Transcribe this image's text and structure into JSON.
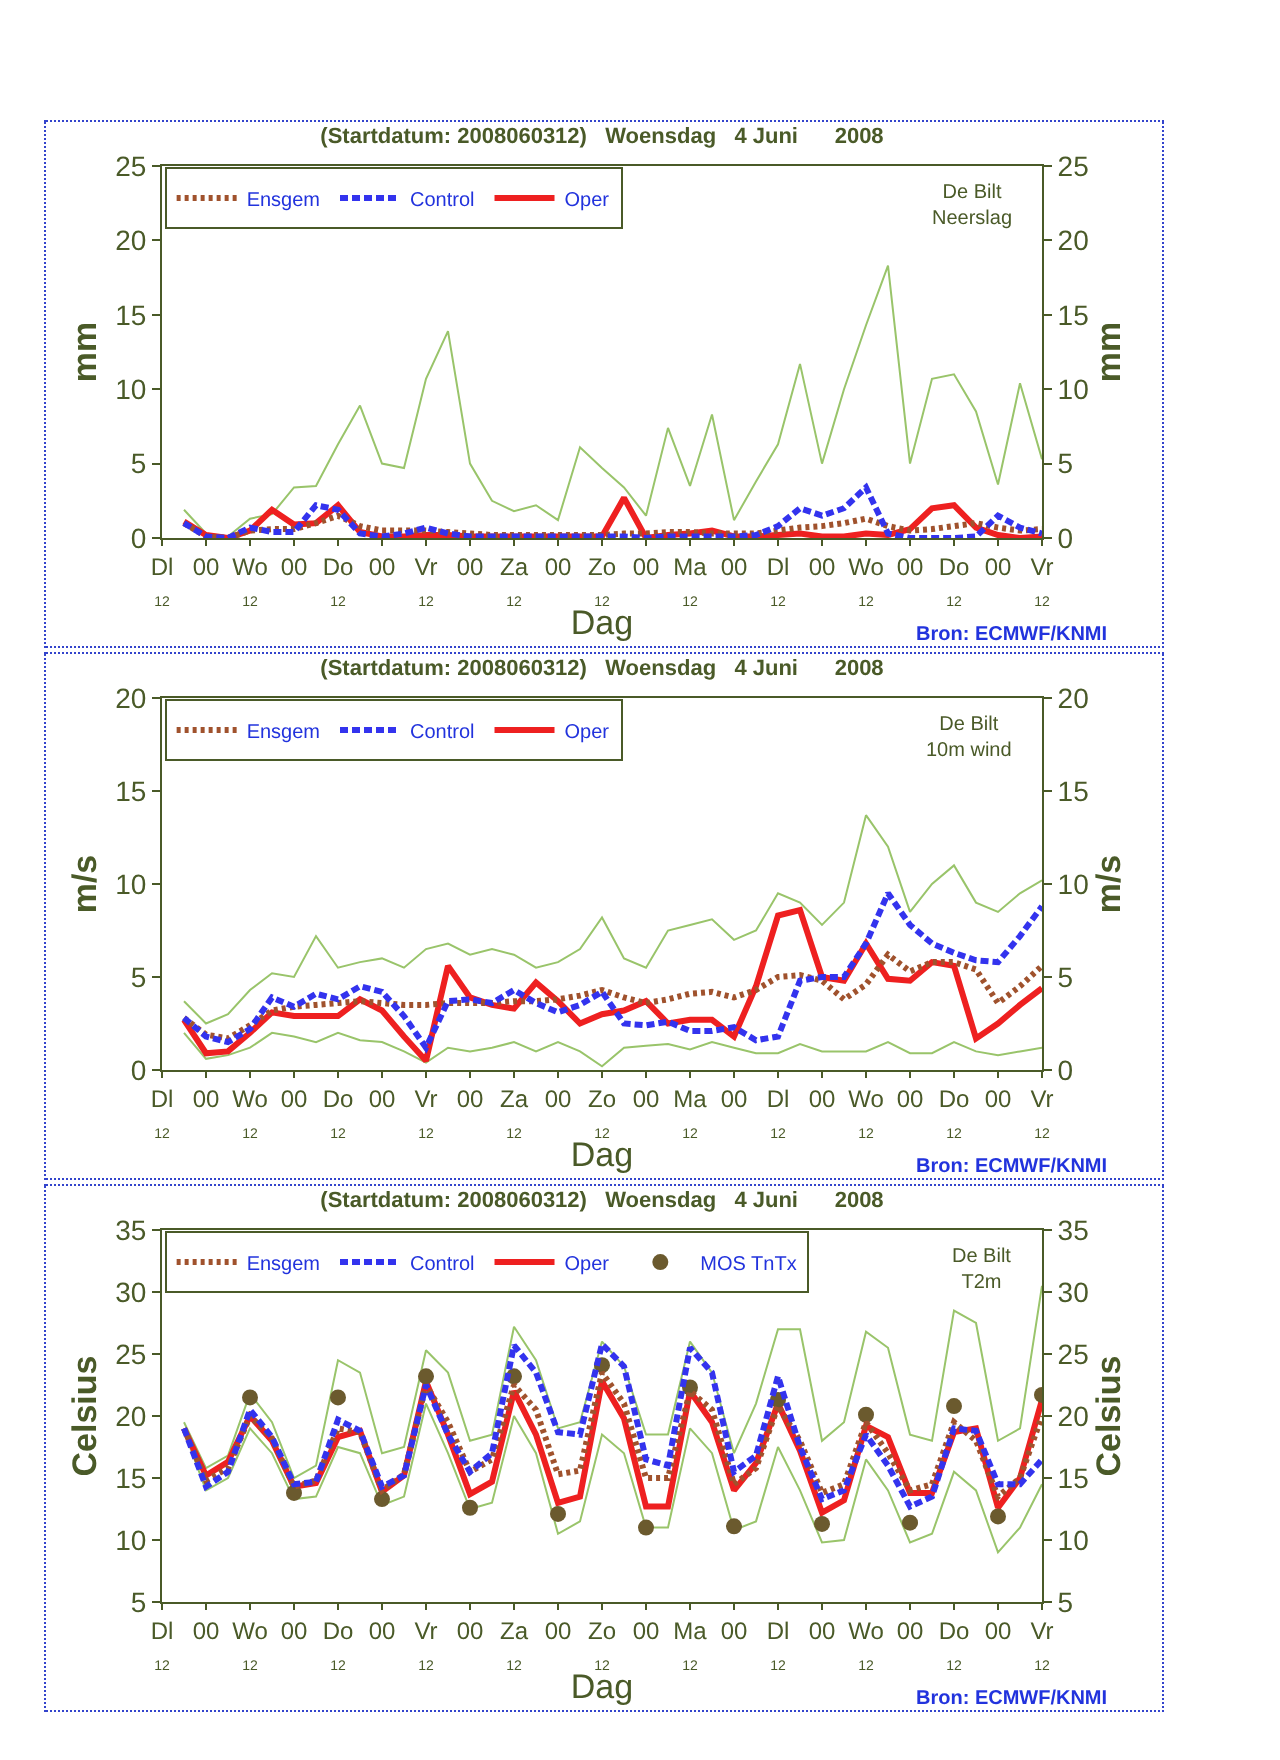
{
  "chart_data": [
    {
      "type": "line",
      "title": "(Startdatum: 2008060312)   Woensdag   4 Juni      2008",
      "xlabel": "Dag",
      "ylabel": "mm",
      "y2label": "mm",
      "annotations": [
        "De Bilt\nNeerslag",
        "Bron: ECMWF/KNMI"
      ],
      "categories": [
        "Dl\n12",
        null,
        "00",
        null,
        "Wo\n12",
        null,
        "00",
        null,
        "Do\n12",
        null,
        "00",
        null,
        "Vr\n12",
        null,
        "00",
        null,
        "Za\n12",
        null,
        "00",
        null,
        "Zo\n12",
        null,
        "00",
        null,
        "Ma\n12",
        null,
        "00",
        null,
        "Dl\n12",
        null,
        "00",
        null,
        "Wo\n12",
        null,
        "00",
        null,
        "Do\n12",
        null,
        "00",
        null,
        "Vr\n12"
      ],
      "ylim": [
        0,
        25
      ],
      "yticks": [
        0,
        5,
        10,
        15,
        20,
        25
      ],
      "y2lim": [
        0,
        25
      ],
      "y2ticks": [
        0,
        5,
        10,
        15,
        20,
        25
      ],
      "legend": "top left",
      "series": [
        {
          "color": "#99c46a",
          "line_style": "solid",
          "values": [
            null,
            1.9,
            0.3,
            0.1,
            1.3,
            1.6,
            3.4,
            3.5,
            6.3,
            8.9,
            5.0,
            4.7,
            10.7,
            13.9,
            5.0,
            2.5,
            1.8,
            2.2,
            1.2,
            6.1,
            4.7,
            3.4,
            1.5,
            7.4,
            3.5,
            8.3,
            1.2,
            3.8,
            6.3,
            11.7,
            5.0,
            10.0,
            14.3,
            18.3,
            5.0,
            10.7,
            11.0,
            8.5,
            3.6,
            10.4,
            5.3
          ]
        },
        {
          "name": "Ensgem",
          "color": "#a0522d",
          "line_style": "dotted",
          "values": [
            null,
            1.0,
            0.1,
            0,
            0.5,
            0.6,
            0.6,
            1.0,
            1.5,
            0.8,
            0.5,
            0.5,
            0.5,
            0.4,
            0.3,
            0.2,
            0.2,
            0.2,
            0.2,
            0.2,
            0.2,
            0.3,
            0.3,
            0.4,
            0.4,
            0.3,
            0.3,
            0.3,
            0.5,
            0.7,
            0.8,
            1.0,
            1.3,
            0.8,
            0.5,
            0.6,
            0.8,
            1.0,
            0.7,
            0.5,
            0.6
          ]
        },
        {
          "name": "Control",
          "color": "#3333ee",
          "line_style": "dashed",
          "values": [
            null,
            1.0,
            0.1,
            0,
            0.7,
            0.4,
            0.4,
            2.2,
            1.9,
            0.3,
            0.1,
            0.3,
            0.7,
            0.3,
            0.1,
            0.1,
            0.1,
            0.1,
            0.1,
            0.1,
            0.1,
            0.1,
            0,
            0.1,
            0.1,
            0.1,
            0.1,
            0.2,
            0.8,
            2.0,
            1.5,
            2.0,
            3.4,
            0.3,
            0,
            0,
            0,
            0.1,
            1.5,
            0.7,
            0.3
          ]
        },
        {
          "name": "Oper",
          "color": "#ee2020",
          "line_style": "solid",
          "values": [
            null,
            1.1,
            0.2,
            0,
            0.5,
            1.9,
            0.9,
            1.0,
            2.2,
            0.4,
            0.1,
            0.1,
            0.2,
            0.2,
            0.1,
            0.1,
            0.1,
            0.1,
            0.1,
            0.1,
            0.1,
            2.7,
            0,
            0.2,
            0.3,
            0.5,
            0.1,
            0.1,
            0.2,
            0.3,
            0.1,
            0.1,
            0.3,
            0.2,
            0.6,
            2.0,
            2.2,
            0.7,
            0.2,
            0,
            0.1
          ]
        }
      ]
    },
    {
      "type": "line",
      "title": "(Startdatum: 2008060312)   Woensdag   4 Juni      2008",
      "xlabel": "Dag",
      "ylabel": "m/s",
      "y2label": "m/s",
      "annotations": [
        "De Bilt\n10m wind",
        "Bron: ECMWF/KNMI"
      ],
      "categories": [
        "Dl\n12",
        null,
        "00",
        null,
        "Wo\n12",
        null,
        "00",
        null,
        "Do\n12",
        null,
        "00",
        null,
        "Vr\n12",
        null,
        "00",
        null,
        "Za\n12",
        null,
        "00",
        null,
        "Zo\n12",
        null,
        "00",
        null,
        "Ma\n12",
        null,
        "00",
        null,
        "Dl\n12",
        null,
        "00",
        null,
        "Wo\n12",
        null,
        "00",
        null,
        "Do\n12",
        null,
        "00",
        null,
        "Vr\n12"
      ],
      "ylim": [
        0,
        20
      ],
      "yticks": [
        0,
        5,
        10,
        15,
        20
      ],
      "y2lim": [
        0,
        20
      ],
      "y2ticks": [
        0,
        5,
        10,
        15,
        20
      ],
      "legend": "top left",
      "series": [
        {
          "color": "#99c46a",
          "line_style": "solid",
          "values": [
            null,
            3.7,
            2.5,
            3.0,
            4.3,
            5.2,
            5.0,
            7.2,
            5.5,
            5.8,
            6.0,
            5.5,
            6.5,
            6.8,
            6.2,
            6.5,
            6.2,
            5.5,
            5.8,
            6.5,
            8.2,
            6.0,
            5.5,
            7.5,
            7.8,
            8.1,
            7.0,
            7.5,
            9.5,
            9.0,
            7.8,
            9.0,
            13.7,
            12.0,
            8.5,
            10.0,
            11.0,
            9.0,
            8.5,
            9.5,
            10.2
          ]
        },
        {
          "color": "#99c46a",
          "line_style": "solid",
          "values": [
            null,
            2.0,
            0.6,
            0.8,
            1.2,
            2.0,
            1.8,
            1.5,
            2.0,
            1.6,
            1.5,
            1.0,
            0.4,
            1.2,
            1.0,
            1.2,
            1.5,
            1.0,
            1.5,
            1.0,
            0.2,
            1.2,
            1.3,
            1.4,
            1.1,
            1.5,
            1.2,
            0.9,
            0.9,
            1.4,
            1.0,
            1.0,
            1.0,
            1.5,
            0.9,
            0.9,
            1.5,
            1.0,
            0.8,
            1.0,
            1.2
          ]
        },
        {
          "name": "Ensgem",
          "color": "#a0522d",
          "line_style": "dotted",
          "values": [
            null,
            2.8,
            1.9,
            1.7,
            2.4,
            3.2,
            3.4,
            3.5,
            3.6,
            3.7,
            3.6,
            3.5,
            3.5,
            3.6,
            3.6,
            3.6,
            3.7,
            3.7,
            3.8,
            4.0,
            4.3,
            3.9,
            3.6,
            3.8,
            4.1,
            4.2,
            3.9,
            4.3,
            5.0,
            5.1,
            4.8,
            3.8,
            4.6,
            6.2,
            5.3,
            5.8,
            5.8,
            5.4,
            3.6,
            4.5,
            5.6
          ]
        },
        {
          "name": "Control",
          "color": "#3333ee",
          "line_style": "dashed",
          "values": [
            null,
            2.8,
            1.8,
            1.5,
            2.2,
            3.9,
            3.4,
            4.1,
            3.8,
            4.5,
            4.2,
            2.9,
            1.2,
            3.7,
            3.8,
            3.6,
            4.3,
            3.6,
            3.1,
            3.5,
            4.2,
            2.5,
            2.4,
            2.6,
            2.1,
            2.1,
            2.3,
            1.6,
            1.8,
            4.8,
            5.0,
            5.0,
            6.8,
            9.5,
            7.8,
            6.8,
            6.3,
            5.9,
            5.8,
            7.2,
            8.8
          ]
        },
        {
          "name": "Oper",
          "color": "#ee2020",
          "line_style": "solid",
          "values": [
            null,
            2.7,
            0.9,
            1.0,
            2.0,
            3.1,
            2.9,
            2.9,
            2.9,
            3.8,
            3.2,
            1.8,
            0.5,
            5.6,
            3.9,
            3.5,
            3.3,
            4.7,
            3.7,
            2.5,
            3.0,
            3.2,
            3.7,
            2.5,
            2.7,
            2.7,
            1.8,
            4.5,
            8.3,
            8.6,
            5.0,
            4.8,
            6.8,
            4.9,
            4.8,
            5.8,
            5.6,
            1.7,
            2.5,
            3.5,
            4.4
          ]
        }
      ]
    },
    {
      "type": "line",
      "title": "(Startdatum: 2008060312)   Woensdag   4 Juni      2008",
      "xlabel": "Dag",
      "ylabel": "Celsius",
      "y2label": "Celsius",
      "annotations": [
        "De Bilt\nT2m",
        "Bron: ECMWF/KNMI"
      ],
      "categories": [
        "Dl\n12",
        null,
        "00",
        null,
        "Wo\n12",
        null,
        "00",
        null,
        "Do\n12",
        null,
        "00",
        null,
        "Vr\n12",
        null,
        "00",
        null,
        "Za\n12",
        null,
        "00",
        null,
        "Zo\n12",
        null,
        "00",
        null,
        "Ma\n12",
        null,
        "00",
        null,
        "Dl\n12",
        null,
        "00",
        null,
        "Wo\n12",
        null,
        "00",
        null,
        "Do\n12",
        null,
        "00",
        null,
        "Vr\n12"
      ],
      "ylim": [
        5,
        35
      ],
      "yticks": [
        5,
        10,
        15,
        20,
        25,
        30,
        35
      ],
      "y2lim": [
        5,
        35
      ],
      "y2ticks": [
        5,
        10,
        15,
        20,
        25,
        30,
        35
      ],
      "legend": "top left",
      "series": [
        {
          "color": "#99c46a",
          "line_style": "solid",
          "values": [
            null,
            19.5,
            15.8,
            16.8,
            21.8,
            19.5,
            15.0,
            16.0,
            24.5,
            23.5,
            17.0,
            17.5,
            25.3,
            23.5,
            18.0,
            18.5,
            27.2,
            24.5,
            19.0,
            19.5,
            26.0,
            24.0,
            18.5,
            18.5,
            26.0,
            23.5,
            17.0,
            21.0,
            27.0,
            27.0,
            18.0,
            19.5,
            26.8,
            25.5,
            18.5,
            18.0,
            28.5,
            27.5,
            18.0,
            19.0,
            30.5
          ]
        },
        {
          "color": "#99c46a",
          "line_style": "solid",
          "values": [
            null,
            18.8,
            14.0,
            15.0,
            19.0,
            17.0,
            13.3,
            13.5,
            17.5,
            17.0,
            12.8,
            13.5,
            21.0,
            17.0,
            12.5,
            13.0,
            20.0,
            17.0,
            10.5,
            11.5,
            18.5,
            17.0,
            11.0,
            11.0,
            19.0,
            17.0,
            10.8,
            11.5,
            17.5,
            14.0,
            9.8,
            10.0,
            16.5,
            14.0,
            9.8,
            10.5,
            15.5,
            14.0,
            9.0,
            11.0,
            14.5
          ]
        },
        {
          "name": "Ensgem",
          "color": "#a0522d",
          "line_style": "dotted",
          "values": [
            null,
            19.0,
            14.8,
            15.8,
            20.0,
            18.2,
            14.3,
            14.8,
            19.0,
            18.7,
            14.0,
            15.3,
            22.5,
            19.5,
            15.5,
            16.5,
            22.5,
            20.5,
            15.3,
            15.6,
            23.5,
            21.0,
            15.0,
            15.0,
            22.0,
            20.5,
            14.5,
            15.8,
            20.8,
            18.0,
            13.8,
            14.5,
            19.5,
            17.0,
            14.0,
            14.5,
            19.5,
            18.0,
            13.5,
            15.0,
            20.0
          ]
        },
        {
          "name": "Control",
          "color": "#3333ee",
          "line_style": "dashed",
          "values": [
            null,
            19.0,
            14.3,
            15.5,
            20.5,
            18.3,
            14.5,
            14.7,
            19.7,
            18.8,
            14.3,
            15.2,
            22.5,
            18.5,
            15.5,
            17.0,
            25.7,
            23.5,
            18.7,
            18.5,
            25.8,
            24.0,
            16.5,
            16.0,
            25.5,
            23.5,
            15.5,
            16.8,
            23.2,
            17.5,
            13.3,
            14.0,
            18.5,
            16.0,
            12.7,
            13.5,
            19.0,
            18.8,
            14.5,
            14.5,
            16.5
          ]
        },
        {
          "name": "Oper",
          "color": "#ee2020",
          "line_style": "solid",
          "values": [
            null,
            19.0,
            15.2,
            16.3,
            20.0,
            18.0,
            14.3,
            14.6,
            18.3,
            18.8,
            13.9,
            15.2,
            22.8,
            18.5,
            13.7,
            14.7,
            22.0,
            18.5,
            13.0,
            13.5,
            22.8,
            19.8,
            12.7,
            12.7,
            22.0,
            19.5,
            14.0,
            16.2,
            21.0,
            17.2,
            12.2,
            13.2,
            19.2,
            18.3,
            13.8,
            13.8,
            18.7,
            19.0,
            12.6,
            15.0,
            21.3
          ]
        },
        {
          "name": "MOS TnTx",
          "type": "scatter",
          "marker": "circle",
          "color": "#6b5a2e",
          "values": [
            null,
            null,
            null,
            null,
            21.5,
            null,
            13.8,
            null,
            21.5,
            null,
            13.3,
            null,
            23.2,
            null,
            12.6,
            null,
            23.2,
            null,
            12.1,
            null,
            24.1,
            null,
            11.0,
            null,
            22.3,
            null,
            11.1,
            null,
            21.3,
            null,
            11.3,
            null,
            20.1,
            null,
            11.4,
            null,
            20.8,
            null,
            11.9,
            null,
            21.7
          ]
        }
      ]
    }
  ]
}
